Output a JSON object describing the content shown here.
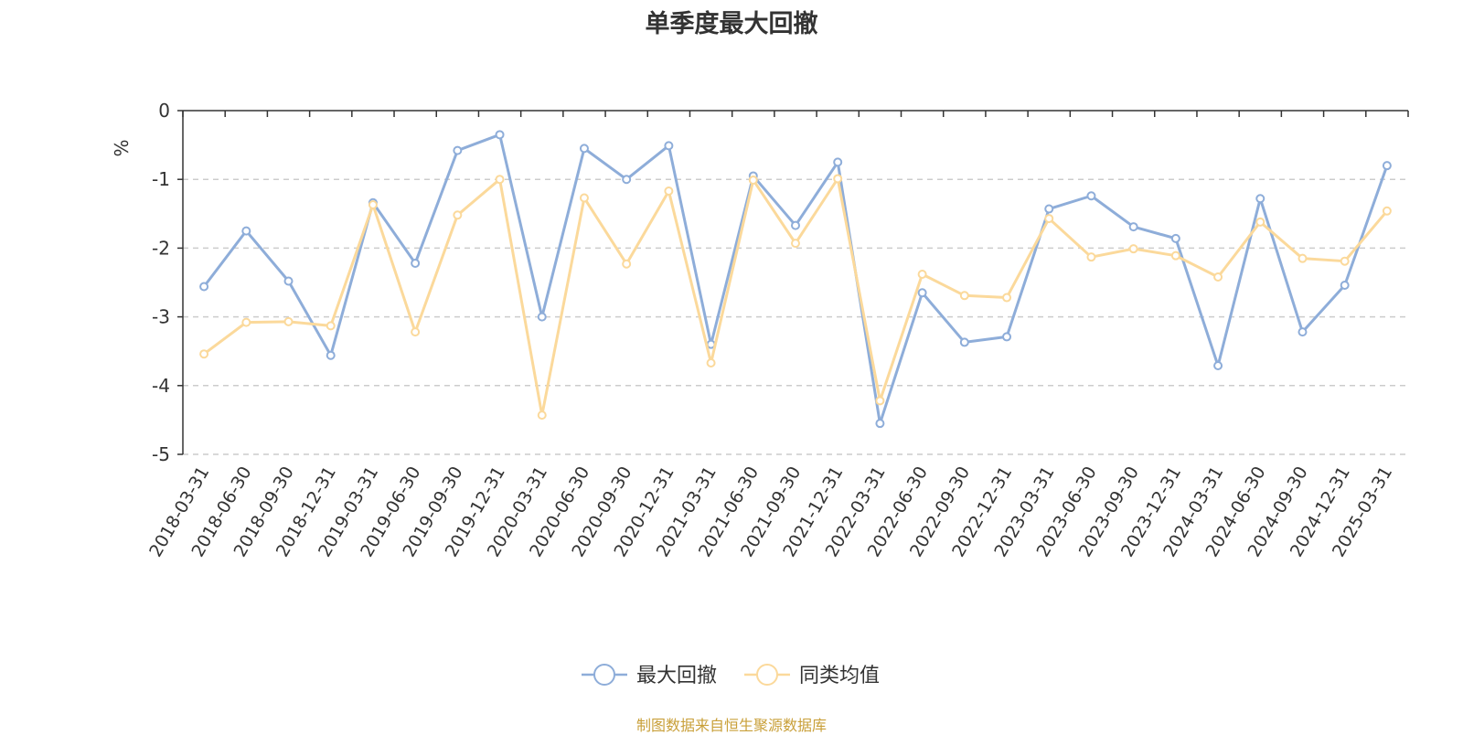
{
  "chart_data": {
    "type": "line",
    "title": "单季度最大回撤",
    "ylabel": "%",
    "ylim": [
      -5,
      0
    ],
    "yticks": [
      0,
      -1,
      -2,
      -3,
      -4,
      -5
    ],
    "grid": true,
    "legend_position": "bottom-center",
    "x": [
      "2018-03-31",
      "2018-06-30",
      "2018-09-30",
      "2018-12-31",
      "2019-03-31",
      "2019-06-30",
      "2019-09-30",
      "2019-12-31",
      "2020-03-31",
      "2020-06-30",
      "2020-09-30",
      "2020-12-31",
      "2021-03-31",
      "2021-06-30",
      "2021-09-30",
      "2021-12-31",
      "2022-03-31",
      "2022-06-30",
      "2022-09-30",
      "2022-12-31",
      "2023-03-31",
      "2023-06-30",
      "2023-09-30",
      "2023-12-31",
      "2024-03-31",
      "2024-06-30",
      "2024-09-30",
      "2024-12-31",
      "2025-03-31"
    ],
    "series": [
      {
        "name": "最大回撤",
        "color": "#8eadd9",
        "values": [
          -2.56,
          -1.75,
          -2.48,
          -3.56,
          -1.34,
          -2.22,
          -0.58,
          -0.35,
          -3.0,
          -0.55,
          -1.0,
          -0.51,
          -3.4,
          -0.95,
          -1.67,
          -0.75,
          -4.55,
          -2.65,
          -3.37,
          -3.29,
          -1.43,
          -1.24,
          -1.69,
          -1.86,
          -3.71,
          -1.28,
          -3.22,
          -2.54,
          -0.8
        ]
      },
      {
        "name": "同类均值",
        "color": "#fbd99b",
        "values": [
          -3.54,
          -3.08,
          -3.07,
          -3.13,
          -1.37,
          -3.22,
          -1.52,
          -1.0,
          -4.43,
          -1.27,
          -2.23,
          -1.17,
          -3.67,
          -1.01,
          -1.93,
          -0.99,
          -4.22,
          -2.38,
          -2.69,
          -2.72,
          -1.57,
          -2.13,
          -2.01,
          -2.11,
          -2.42,
          -1.62,
          -2.15,
          -2.19,
          -1.46
        ]
      }
    ]
  },
  "source_text": "制图数据来自恒生聚源数据库",
  "source_color": "#c9a03a",
  "axis_label_color": "#e43c3c"
}
